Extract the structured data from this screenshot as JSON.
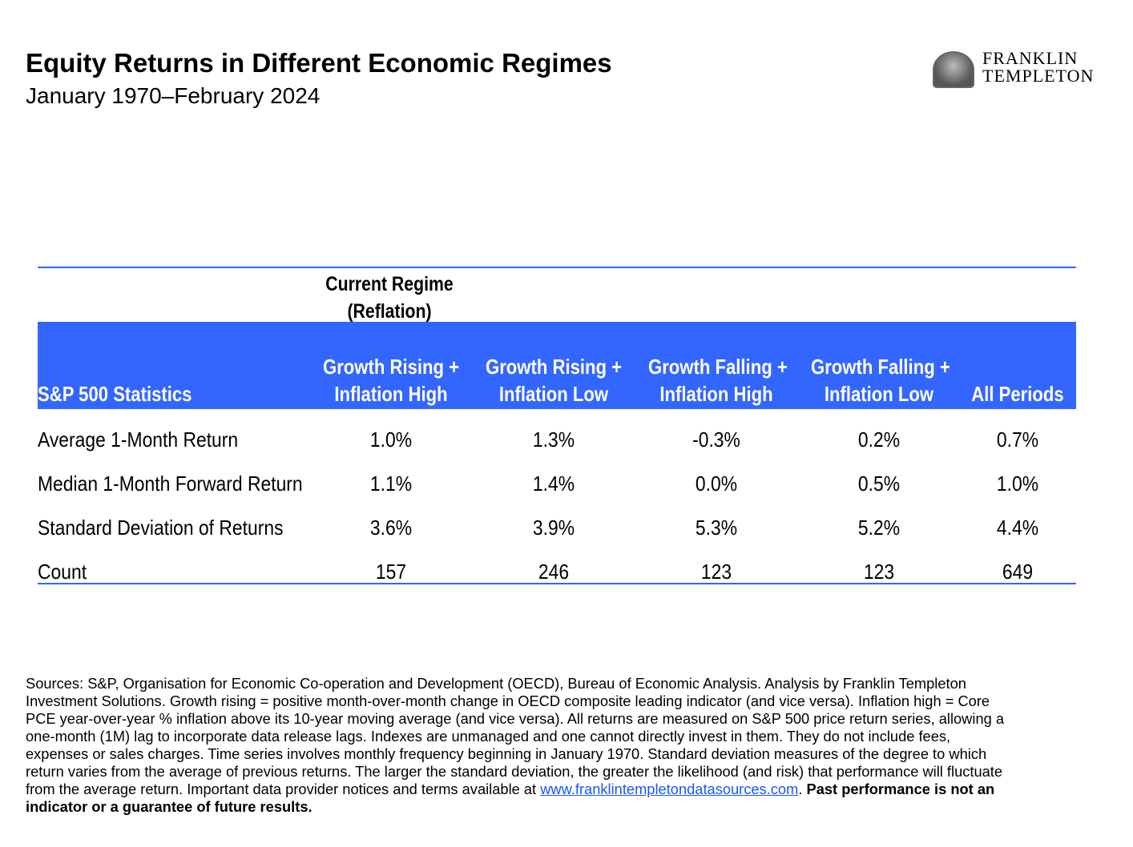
{
  "header": {
    "title": "Equity Returns in Different Economic Regimes",
    "subtitle": "January 1970–February 2024",
    "logo_text": [
      "FRANKLIN",
      "TEMPLETON"
    ]
  },
  "table": {
    "current_regime": [
      "Current Regime",
      "(Reflation)"
    ],
    "columns": [
      {
        "lines": [
          "",
          "S&P 500 Statistics"
        ]
      },
      {
        "lines": [
          "Growth Rising +",
          "Inflation High"
        ]
      },
      {
        "lines": [
          "Growth Rising +",
          "Inflation Low"
        ]
      },
      {
        "lines": [
          "Growth Falling +",
          "Inflation High"
        ]
      },
      {
        "lines": [
          "Growth Falling +",
          "Inflation Low"
        ]
      },
      {
        "lines": [
          "",
          "All Periods"
        ]
      }
    ],
    "rows": [
      {
        "label": "Average 1-Month Return",
        "values": [
          "1.0%",
          "1.3%",
          "-0.3%",
          "0.2%",
          "0.7%"
        ]
      },
      {
        "label": "Median 1-Month Forward Return",
        "values": [
          "1.1%",
          "1.4%",
          "0.0%",
          "0.5%",
          "1.0%"
        ]
      },
      {
        "label": "Standard Deviation of Returns",
        "values": [
          "3.6%",
          "3.9%",
          "5.3%",
          "5.2%",
          "4.4%"
        ]
      },
      {
        "label": "Count",
        "values": [
          "157",
          "246",
          "123",
          "123",
          "649"
        ]
      }
    ],
    "header_color": "#3366FF"
  },
  "footnote": {
    "lines": [
      "Sources: S&P, Organisation for Economic Co-operation and Development (OECD), Bureau of Economic Analysis. Analysis by Franklin Templeton",
      "Investment Solutions. Growth rising = positive month-over-month change in OECD composite leading indicator (and vice versa). Inflation high = Core",
      "PCE year-over-year % inflation above its 10-year moving average (and vice versa). All returns are measured on S&P 500 price return series, allowing a",
      "one-month (1M) lag to incorporate data release lags. Indexes are unmanaged and one cannot directly invest in them. They do not include fees,",
      "expenses or sales charges. Time series involves monthly frequency beginning in January 1970. Standard deviation measures of the degree to which",
      "return varies from the average of previous returns. The larger the standard deviation, the greater the likelihood (and risk) that performance will fluctuate"
    ],
    "last_line_prefix": "from the average return. Important data provider notices and terms available at ",
    "link": "www.franklintempletondatasources.com",
    "after_link": ". ",
    "bold_1": "Past performance is not an",
    "bold_2": "indicator or a guarantee of future results."
  }
}
